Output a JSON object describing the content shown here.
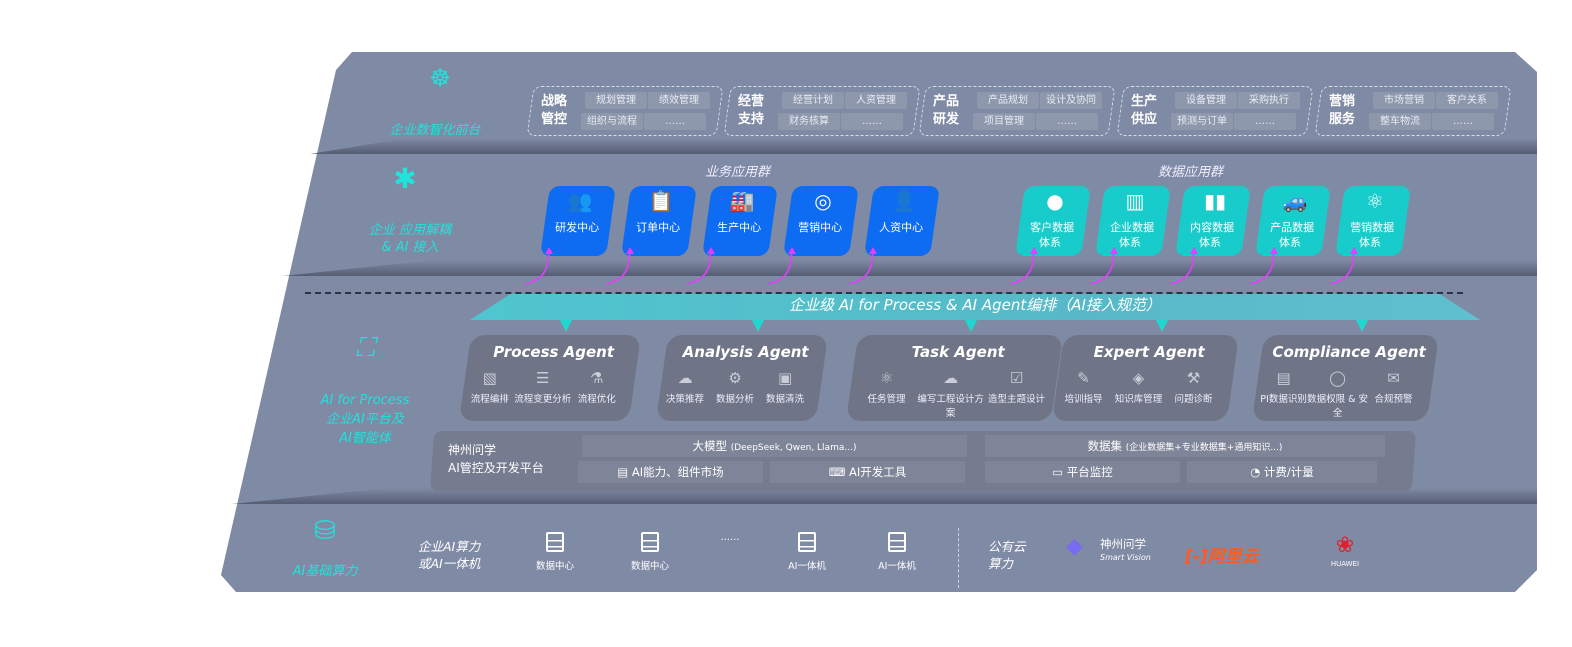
{
  "layers": {
    "front": {
      "label": "企业数智化前台",
      "icon": "brain-icon",
      "groups": [
        {
          "title": "战略管控",
          "items": [
            "规划管理",
            "绩效管理",
            "组织与流程",
            "……"
          ]
        },
        {
          "title": "经营支持",
          "items": [
            "经营计划",
            "人资管理",
            "财务核算",
            "……"
          ]
        },
        {
          "title": "产品研发",
          "items": [
            "产品规划",
            "设计及协同",
            "项目管理",
            "……"
          ]
        },
        {
          "title": "生产供应",
          "items": [
            "设备管理",
            "采购执行",
            "预测与订单",
            "……"
          ]
        },
        {
          "title": "营销服务",
          "items": [
            "市场营销",
            "客户关系",
            "整车物流",
            "……"
          ]
        }
      ]
    },
    "apps": {
      "label1": "企业 应用解耦",
      "label2": "& AI 接入",
      "icon": "molecule-icon",
      "business_title": "业务应用群",
      "business": [
        {
          "label": "研发中心",
          "icon": "team-icon"
        },
        {
          "label": "订单中心",
          "icon": "clipboard-icon"
        },
        {
          "label": "生产中心",
          "icon": "factory-icon"
        },
        {
          "label": "营销中心",
          "icon": "target-icon"
        },
        {
          "label": "人资中心",
          "icon": "person-icon"
        }
      ],
      "data_title": "数据应用群",
      "data": [
        {
          "label1": "客户数据",
          "label2": "体系",
          "icon": "user-icon"
        },
        {
          "label1": "企业数据",
          "label2": "体系",
          "icon": "building-icon"
        },
        {
          "label1": "内容数据",
          "label2": "体系",
          "icon": "books-icon"
        },
        {
          "label1": "产品数据",
          "label2": "体系",
          "icon": "car-icon"
        },
        {
          "label1": "营销数据",
          "label2": "体系",
          "icon": "atom-icon"
        }
      ]
    },
    "ai": {
      "label1": "AI for Process",
      "label2": "企业AI平台及",
      "label3": "AI智能体",
      "icon": "face-scan-icon",
      "banner": "企业级 AI for Process & AI Agent编排（AI接入规范）",
      "agents": [
        {
          "name": "Process Agent",
          "items": [
            "流程编排",
            "流程变更分析",
            "流程优化"
          ]
        },
        {
          "name": "Analysis Agent",
          "items": [
            "决策推荐",
            "数据分析",
            "数据清洗"
          ]
        },
        {
          "name": "Task Agent",
          "items": [
            "任务管理",
            "编写工程设计方案",
            "造型主题设计"
          ]
        },
        {
          "name": "Expert Agent",
          "items": [
            "培训指导",
            "知识库管理",
            "问题诊断"
          ]
        },
        {
          "name": "Compliance Agent",
          "items": [
            "PI数据识别",
            "数据权限 & 安全",
            "合规预警"
          ]
        }
      ],
      "platform": {
        "title1": "神州问学",
        "title2": "AI管控及开发平台",
        "model": "大模型",
        "model_note": "(DeepSeek, Qwen, Llama...)",
        "dataset": "数据集",
        "dataset_note": "(企业数据集+专业数据集+通用知识...)",
        "cells": [
          "AI能力、组件市场",
          "AI开发工具",
          "平台监控",
          "计费/计量"
        ]
      }
    },
    "compute": {
      "label": "AI基础算力",
      "icon": "database-icon",
      "private1": "企业AI算力",
      "private2": "或AI一体机",
      "servers": [
        "数据中心",
        "数据中心",
        "……",
        "AI一体机",
        "AI一体机"
      ],
      "public1": "公有云",
      "public2": "算力",
      "vendors": {
        "smart_vision": "神州问学",
        "smart_vision_sub": "Smart Vision",
        "aliyun": "阿里云",
        "huawei": "HUAWEI"
      }
    }
  },
  "colors": {
    "panel": "#7f8aa4",
    "accent": "#1fe3dc",
    "blue": "#0d6cf2",
    "teal": "#19cccc",
    "arrow": "#e040fb"
  }
}
